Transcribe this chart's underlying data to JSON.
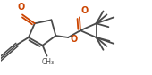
{
  "bg_color": "#ffffff",
  "line_color": "#4a4a4a",
  "line_width": 1.3,
  "oxygen_color": "#cc4400",
  "fig_width": 1.7,
  "fig_height": 0.84,
  "dpi": 100,
  "xlim": [
    0,
    170
  ],
  "ylim": [
    0,
    84
  ]
}
